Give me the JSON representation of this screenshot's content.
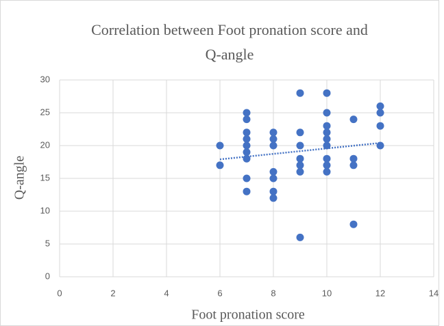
{
  "chart_data": {
    "type": "scatter",
    "title": [
      "Correlation between Foot pronation score and",
      "Q-angle"
    ],
    "x_label": "Foot pronation score",
    "y_label": "Q-angle",
    "color": "#4472c4",
    "series": [
      {
        "x": [
          6,
          6,
          7,
          7,
          7,
          7,
          7,
          7,
          7,
          7,
          7,
          8,
          8,
          8,
          8,
          8,
          8,
          8,
          9,
          9,
          9,
          9,
          9,
          9,
          9,
          10,
          10,
          10,
          10,
          10,
          10,
          10,
          10,
          10,
          11,
          11,
          11,
          11,
          12,
          12,
          12,
          12
        ],
        "values": [
          20,
          17,
          25,
          24,
          22,
          21,
          20,
          19,
          18,
          15,
          13,
          22,
          21,
          20,
          16,
          15,
          13,
          12,
          28,
          22,
          20,
          18,
          17,
          16,
          6,
          28,
          25,
          23,
          22,
          21,
          20,
          18,
          17,
          16,
          24,
          18,
          17,
          8,
          26,
          25,
          23,
          20
        ]
      }
    ],
    "trendline": {
      "x": [
        6,
        12
      ],
      "values": [
        17.9,
        20.4
      ],
      "color": "#4472c4"
    },
    "xlim": [
      0,
      14
    ],
    "xticks": [
      0,
      2,
      4,
      6,
      8,
      10,
      12,
      14
    ],
    "ylim": [
      0,
      30
    ],
    "yticks": [
      0,
      5,
      10,
      15,
      20,
      25,
      30
    ],
    "grid": true
  }
}
